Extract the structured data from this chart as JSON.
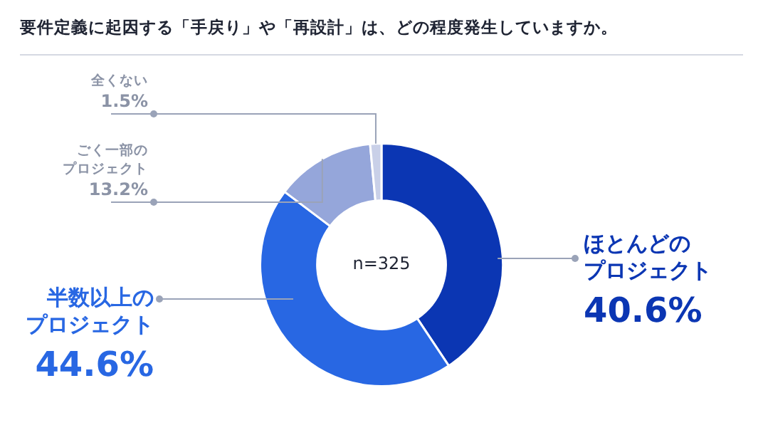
{
  "chart_data": {
    "type": "donut",
    "title": "要件定義に起因する「手戻り」や「再設計」は、どの程度発生していますか。",
    "categories": [
      "ほとんどのプロジェクト",
      "半数以上のプロジェクト",
      "ごく一部のプロジェクト",
      "全くない"
    ],
    "values": [
      40.6,
      44.6,
      13.2,
      1.5
    ],
    "colors": [
      "#0b36b3",
      "#2867e3",
      "#95a6da",
      "#c9d0e8"
    ],
    "value_labels": [
      "40.6%",
      "44.6%",
      "13.2%",
      "1.5%"
    ],
    "annotations": [
      "n=325"
    ],
    "legend": false
  }
}
